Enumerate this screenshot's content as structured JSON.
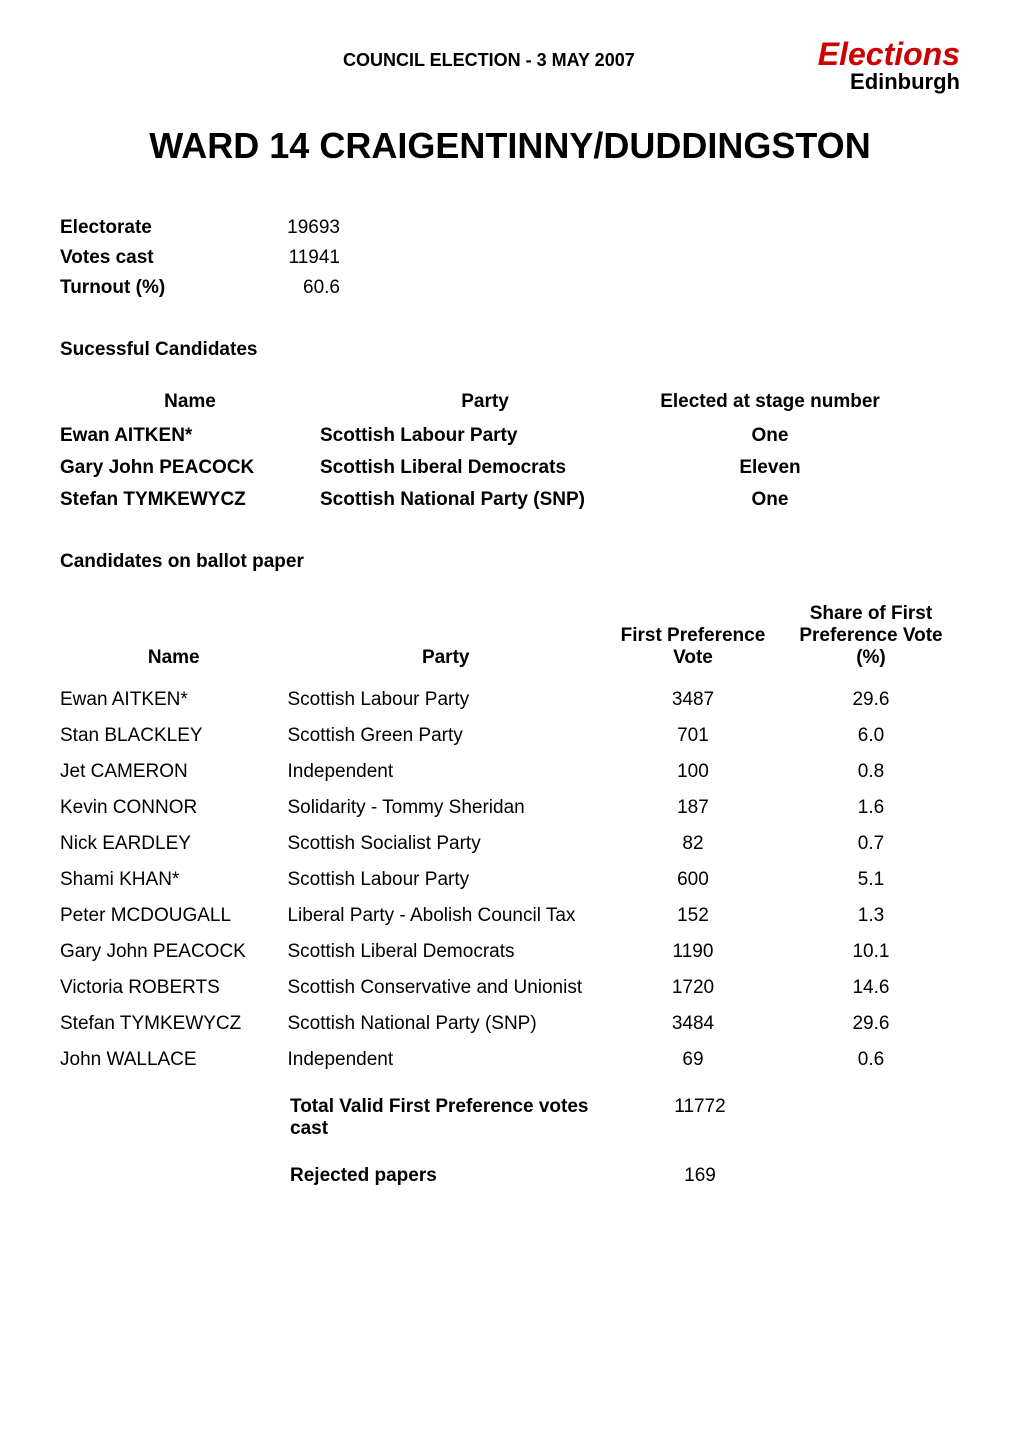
{
  "header": {
    "council_title": "COUNCIL ELECTION - 3 MAY 2007",
    "logo_top": "Elections",
    "logo_bottom": "Edinburgh",
    "logo_top_color": "#cc0000",
    "logo_bottom_color": "#000000"
  },
  "ward_title": "WARD 14 CRAIGENTINNY/DUDDINGSTON",
  "summary": {
    "electorate_label": "Electorate",
    "electorate_value": "19693",
    "votes_cast_label": "Votes cast",
    "votes_cast_value": "11941",
    "turnout_label": "Turnout (%)",
    "turnout_value": "60.6"
  },
  "successful": {
    "section_title": "Sucessful Candidates",
    "headers": {
      "name": "Name",
      "party": "Party",
      "stage": "Elected at stage number"
    },
    "rows": [
      {
        "name": "Ewan AITKEN*",
        "party": "Scottish Labour Party",
        "stage": "One"
      },
      {
        "name": "Gary John PEACOCK",
        "party": "Scottish Liberal Democrats",
        "stage": "Eleven"
      },
      {
        "name": "Stefan TYMKEWYCZ",
        "party": "Scottish National Party (SNP)",
        "stage": "One"
      }
    ]
  },
  "candidates": {
    "section_title": "Candidates on ballot paper",
    "headers": {
      "name": "Name",
      "party": "Party",
      "fpv": "First Preference Vote",
      "share_line1": "Share of First Preference Vote",
      "share_line2": "(%)"
    },
    "rows": [
      {
        "name": "Ewan AITKEN*",
        "party": "Scottish Labour Party",
        "fpv": "3487",
        "share": "29.6"
      },
      {
        "name": "Stan BLACKLEY",
        "party": "Scottish Green Party",
        "fpv": "701",
        "share": "6.0"
      },
      {
        "name": "Jet CAMERON",
        "party": "Independent",
        "fpv": "100",
        "share": "0.8"
      },
      {
        "name": "Kevin CONNOR",
        "party": "Solidarity - Tommy Sheridan",
        "fpv": "187",
        "share": "1.6"
      },
      {
        "name": "Nick EARDLEY",
        "party": "Scottish Socialist Party",
        "fpv": "82",
        "share": "0.7"
      },
      {
        "name": "Shami KHAN*",
        "party": "Scottish Labour Party",
        "fpv": "600",
        "share": "5.1"
      },
      {
        "name": "Peter MCDOUGALL",
        "party": "Liberal Party - Abolish Council Tax",
        "fpv": "152",
        "share": "1.3"
      },
      {
        "name": "Gary John PEACOCK",
        "party": "Scottish Liberal Democrats",
        "fpv": "1190",
        "share": "10.1"
      },
      {
        "name": "Victoria ROBERTS",
        "party": "Scottish Conservative and Unionist",
        "fpv": "1720",
        "share": "14.6"
      },
      {
        "name": "Stefan TYMKEWYCZ",
        "party": "Scottish National Party (SNP)",
        "fpv": "3484",
        "share": "29.6"
      },
      {
        "name": "John WALLACE",
        "party": "Independent",
        "fpv": "69",
        "share": "0.6"
      }
    ],
    "totals": {
      "total_label": "Total Valid First Preference votes cast",
      "total_value": "11772",
      "rejected_label": "Rejected papers",
      "rejected_value": "169"
    }
  },
  "styling": {
    "background_color": "#ffffff",
    "text_color": "#000000",
    "font_family": "Arial, Helvetica, sans-serif",
    "title_fontsize": 36,
    "section_fontsize": 19,
    "body_fontsize": 19
  }
}
